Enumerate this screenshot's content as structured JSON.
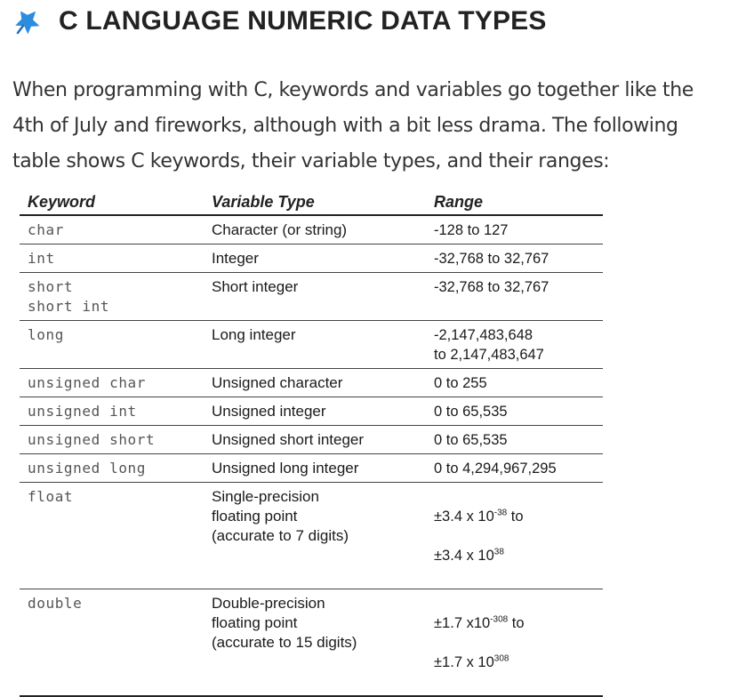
{
  "header": {
    "title": "C LANGUAGE NUMERIC DATA TYPES",
    "icon": "pushpin-icon",
    "icon_color": "#2c8ce0"
  },
  "intro": {
    "text": "When programming with C, keywords and variables go together like the 4th of July and fireworks, although with a bit less drama. The following table shows C keywords, their variable types, and their ranges:"
  },
  "table": {
    "headers": {
      "keyword": "Keyword",
      "variable_type": "Variable Type",
      "range": "Range"
    },
    "rows": [
      {
        "keyword": "char",
        "type": "Character (or string)",
        "range": "-128 to 127"
      },
      {
        "keyword": "int",
        "type": "Integer",
        "range": "-32,768 to 32,767"
      },
      {
        "keyword": "short\nshort int",
        "type": "Short integer",
        "range": "-32,768 to 32,767"
      },
      {
        "keyword": "long",
        "type": "Long integer",
        "range": "-2,147,483,648\nto 2,147,483,647"
      },
      {
        "keyword": "unsigned char",
        "type": "Unsigned character",
        "range": "0 to 255"
      },
      {
        "keyword": "unsigned int",
        "type": "Unsigned integer",
        "range": "0 to 65,535"
      },
      {
        "keyword": "unsigned short",
        "type": "Unsigned short integer",
        "range": "0 to 65,535"
      },
      {
        "keyword": "unsigned long",
        "type": "Unsigned long integer",
        "range": "0 to 4,294,967,295"
      },
      {
        "keyword": "float",
        "type": "Single-precision\nfloating point\n(accurate to 7 digits)",
        "range_l1_base": "±3.4 x 10",
        "range_l1_exp": "-38",
        "range_l1_tail": " to",
        "range_l2_base": "±3.4 x 10",
        "range_l2_exp": "38"
      },
      {
        "keyword": "double",
        "type": "Double-precision\nfloating point\n(accurate to 15 digits)",
        "range_l1_base": "±1.7 x10",
        "range_l1_exp": "-308",
        "range_l1_tail": " to",
        "range_l2_base": "±1.7 x 10",
        "range_l2_exp": "308"
      }
    ]
  }
}
